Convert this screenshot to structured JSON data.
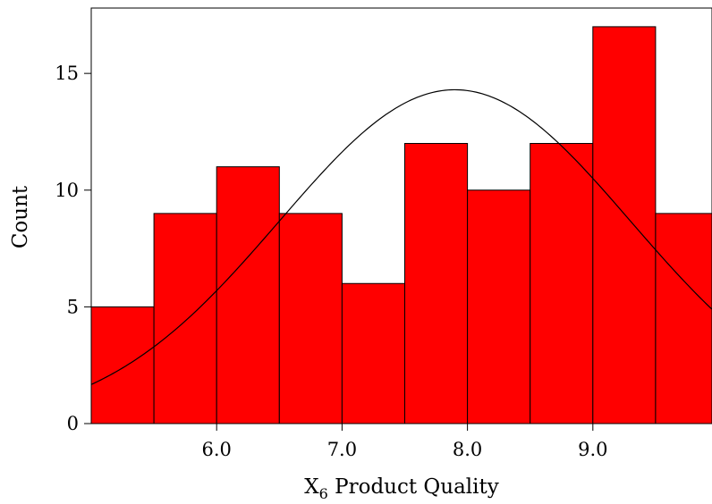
{
  "chart_data": {
    "type": "bar",
    "bins": [
      {
        "x0": 5.0,
        "x1": 5.5,
        "count": 5
      },
      {
        "x0": 5.5,
        "x1": 6.0,
        "count": 9
      },
      {
        "x0": 6.0,
        "x1": 6.5,
        "count": 11
      },
      {
        "x0": 6.5,
        "x1": 7.0,
        "count": 9
      },
      {
        "x0": 7.0,
        "x1": 7.5,
        "count": 6
      },
      {
        "x0": 7.5,
        "x1": 8.0,
        "count": 12
      },
      {
        "x0": 8.0,
        "x1": 8.5,
        "count": 10
      },
      {
        "x0": 8.5,
        "x1": 9.0,
        "count": 12
      },
      {
        "x0": 9.0,
        "x1": 9.5,
        "count": 17
      },
      {
        "x0": 9.5,
        "x1": 10.0,
        "count": 9
      }
    ],
    "normal_curve": {
      "mean": 7.9,
      "sd": 1.4,
      "peak_count": 14.3
    },
    "xlim": [
      5.0,
      9.95
    ],
    "ylim": [
      0,
      17.8
    ],
    "xticks": [
      6.0,
      7.0,
      8.0,
      9.0
    ],
    "xtick_labels": [
      "6.0",
      "7.0",
      "8.0",
      "9.0"
    ],
    "yticks": [
      0,
      5,
      10,
      15
    ],
    "ytick_labels": [
      "0",
      "5",
      "10",
      "15"
    ],
    "xlabel_main": "X",
    "xlabel_subscript": "6",
    "xlabel_rest": " Product Quality",
    "ylabel": "Count",
    "bar_color": "#ff0000",
    "edge_color": "#000000",
    "grid": false
  }
}
